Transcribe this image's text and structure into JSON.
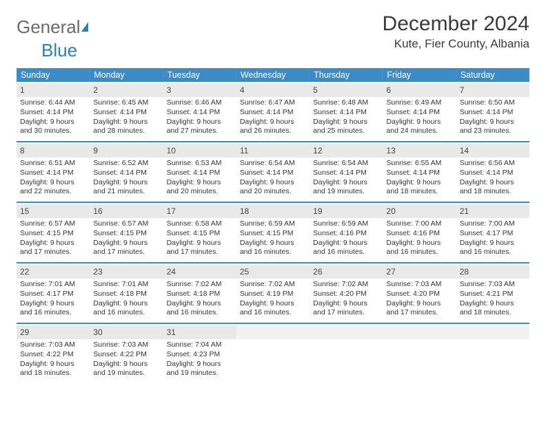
{
  "brand": {
    "part1": "General",
    "part2": "Blue"
  },
  "title": "December 2024",
  "location": "Kute, Fier County, Albania",
  "colors": {
    "header_bg": "#3b8bc8",
    "header_text": "#ffffff",
    "daynum_bg": "#e9e9e9",
    "week_divider": "#3b8bc8",
    "brand_blue": "#2a7fbf",
    "text": "#333333",
    "page_bg": "#ffffff"
  },
  "layout": {
    "columns": 7,
    "rows": 5
  },
  "weekdays": [
    "Sunday",
    "Monday",
    "Tuesday",
    "Wednesday",
    "Thursday",
    "Friday",
    "Saturday"
  ],
  "days": [
    {
      "n": "1",
      "sunrise": "6:44 AM",
      "sunset": "4:14 PM",
      "dl": "9 hours and 30 minutes."
    },
    {
      "n": "2",
      "sunrise": "6:45 AM",
      "sunset": "4:14 PM",
      "dl": "9 hours and 28 minutes."
    },
    {
      "n": "3",
      "sunrise": "6:46 AM",
      "sunset": "4:14 PM",
      "dl": "9 hours and 27 minutes."
    },
    {
      "n": "4",
      "sunrise": "6:47 AM",
      "sunset": "4:14 PM",
      "dl": "9 hours and 26 minutes."
    },
    {
      "n": "5",
      "sunrise": "6:48 AM",
      "sunset": "4:14 PM",
      "dl": "9 hours and 25 minutes."
    },
    {
      "n": "6",
      "sunrise": "6:49 AM",
      "sunset": "4:14 PM",
      "dl": "9 hours and 24 minutes."
    },
    {
      "n": "7",
      "sunrise": "6:50 AM",
      "sunset": "4:14 PM",
      "dl": "9 hours and 23 minutes."
    },
    {
      "n": "8",
      "sunrise": "6:51 AM",
      "sunset": "4:14 PM",
      "dl": "9 hours and 22 minutes."
    },
    {
      "n": "9",
      "sunrise": "6:52 AM",
      "sunset": "4:14 PM",
      "dl": "9 hours and 21 minutes."
    },
    {
      "n": "10",
      "sunrise": "6:53 AM",
      "sunset": "4:14 PM",
      "dl": "9 hours and 20 minutes."
    },
    {
      "n": "11",
      "sunrise": "6:54 AM",
      "sunset": "4:14 PM",
      "dl": "9 hours and 20 minutes."
    },
    {
      "n": "12",
      "sunrise": "6:54 AM",
      "sunset": "4:14 PM",
      "dl": "9 hours and 19 minutes."
    },
    {
      "n": "13",
      "sunrise": "6:55 AM",
      "sunset": "4:14 PM",
      "dl": "9 hours and 18 minutes."
    },
    {
      "n": "14",
      "sunrise": "6:56 AM",
      "sunset": "4:14 PM",
      "dl": "9 hours and 18 minutes."
    },
    {
      "n": "15",
      "sunrise": "6:57 AM",
      "sunset": "4:15 PM",
      "dl": "9 hours and 17 minutes."
    },
    {
      "n": "16",
      "sunrise": "6:57 AM",
      "sunset": "4:15 PM",
      "dl": "9 hours and 17 minutes."
    },
    {
      "n": "17",
      "sunrise": "6:58 AM",
      "sunset": "4:15 PM",
      "dl": "9 hours and 17 minutes."
    },
    {
      "n": "18",
      "sunrise": "6:59 AM",
      "sunset": "4:15 PM",
      "dl": "9 hours and 16 minutes."
    },
    {
      "n": "19",
      "sunrise": "6:59 AM",
      "sunset": "4:16 PM",
      "dl": "9 hours and 16 minutes."
    },
    {
      "n": "20",
      "sunrise": "7:00 AM",
      "sunset": "4:16 PM",
      "dl": "9 hours and 16 minutes."
    },
    {
      "n": "21",
      "sunrise": "7:00 AM",
      "sunset": "4:17 PM",
      "dl": "9 hours and 16 minutes."
    },
    {
      "n": "22",
      "sunrise": "7:01 AM",
      "sunset": "4:17 PM",
      "dl": "9 hours and 16 minutes."
    },
    {
      "n": "23",
      "sunrise": "7:01 AM",
      "sunset": "4:18 PM",
      "dl": "9 hours and 16 minutes."
    },
    {
      "n": "24",
      "sunrise": "7:02 AM",
      "sunset": "4:18 PM",
      "dl": "9 hours and 16 minutes."
    },
    {
      "n": "25",
      "sunrise": "7:02 AM",
      "sunset": "4:19 PM",
      "dl": "9 hours and 16 minutes."
    },
    {
      "n": "26",
      "sunrise": "7:02 AM",
      "sunset": "4:20 PM",
      "dl": "9 hours and 17 minutes."
    },
    {
      "n": "27",
      "sunrise": "7:03 AM",
      "sunset": "4:20 PM",
      "dl": "9 hours and 17 minutes."
    },
    {
      "n": "28",
      "sunrise": "7:03 AM",
      "sunset": "4:21 PM",
      "dl": "9 hours and 18 minutes."
    },
    {
      "n": "29",
      "sunrise": "7:03 AM",
      "sunset": "4:22 PM",
      "dl": "9 hours and 18 minutes."
    },
    {
      "n": "30",
      "sunrise": "7:03 AM",
      "sunset": "4:22 PM",
      "dl": "9 hours and 19 minutes."
    },
    {
      "n": "31",
      "sunrise": "7:04 AM",
      "sunset": "4:23 PM",
      "dl": "9 hours and 19 minutes."
    }
  ],
  "labels": {
    "sunrise": "Sunrise:",
    "sunset": "Sunset:",
    "daylight": "Daylight:"
  }
}
